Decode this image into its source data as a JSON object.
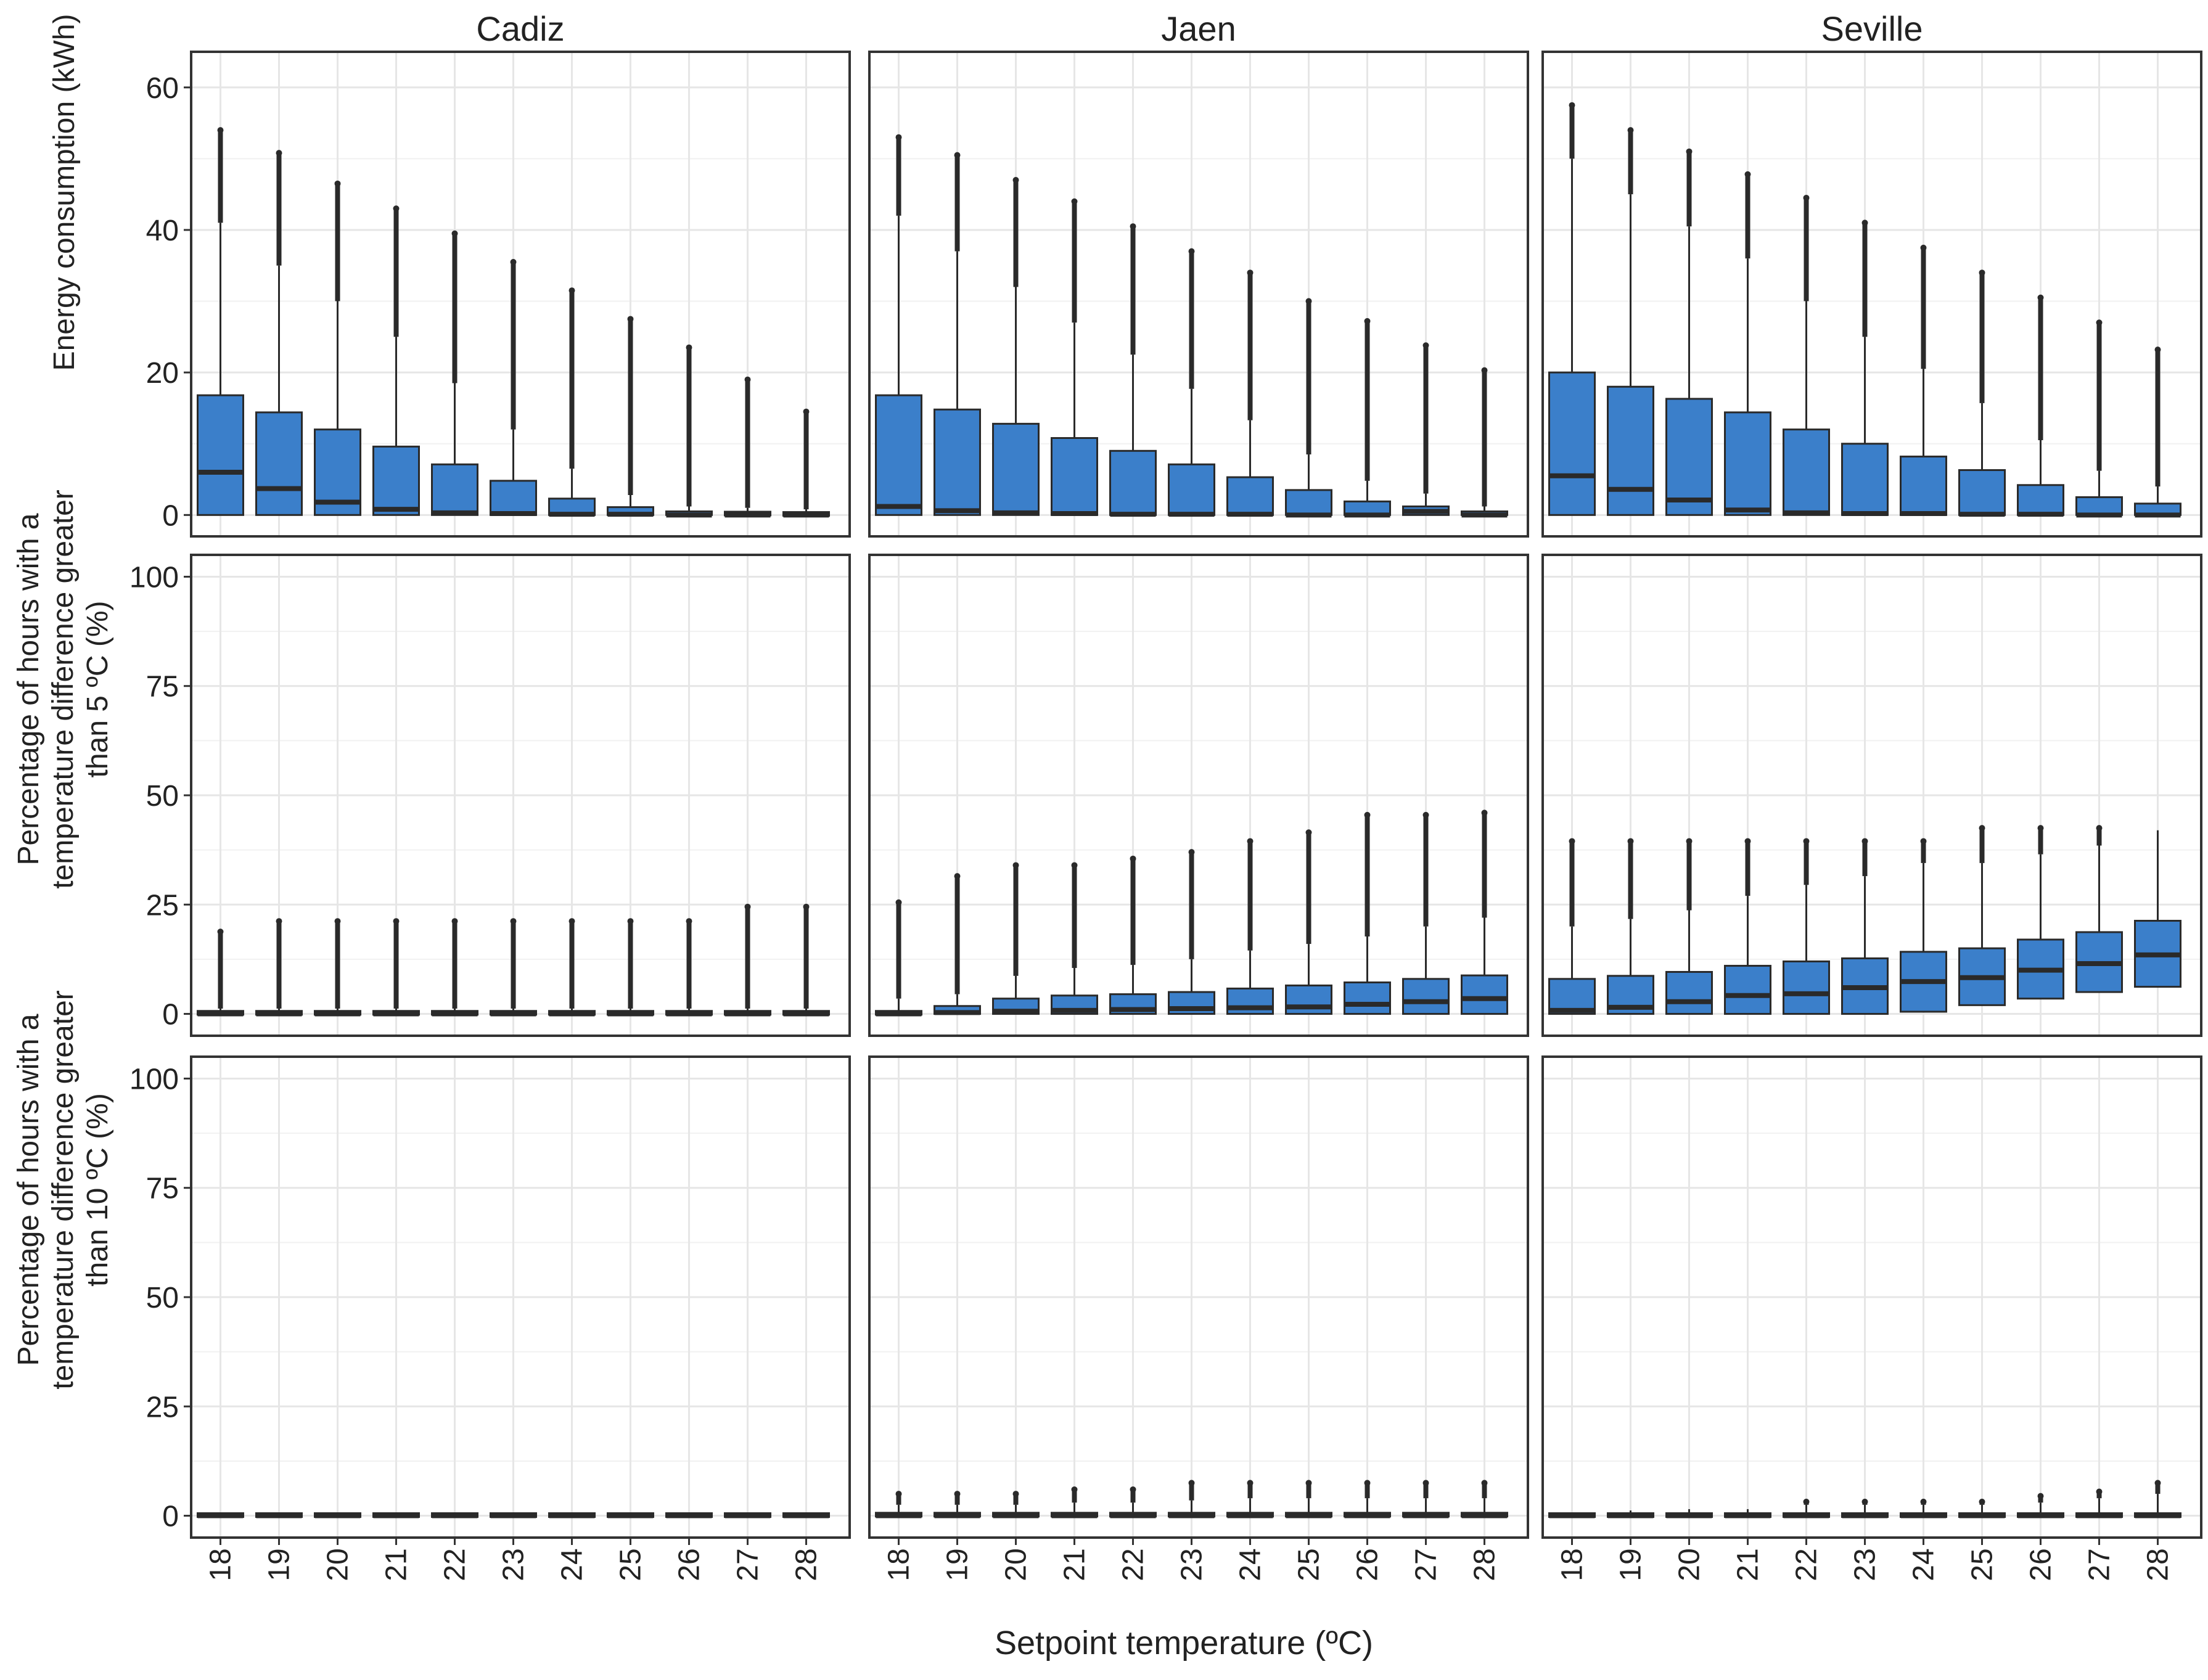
{
  "x_title": "Setpoint temperature (ºC)",
  "categories": [
    "18",
    "19",
    "20",
    "21",
    "22",
    "23",
    "24",
    "25",
    "26",
    "27",
    "28"
  ],
  "columns": [
    "Cadiz",
    "Jaen",
    "Seville"
  ],
  "colors": {
    "box_fill": "#3b7fca",
    "box_stroke": "#2a2a2a",
    "grid": "#e6e6e6",
    "panel_border": "#333333"
  },
  "chart_data": [
    {
      "type": "boxplot",
      "row_label": "Energy consumption (kWh)",
      "ylabel_lines": [
        "Energy consumption (kWh)"
      ],
      "ylim": [
        -3,
        65
      ],
      "yticks": [
        0,
        20,
        40,
        60
      ],
      "yticklabels": [
        "0",
        "20",
        "40",
        "60"
      ],
      "panels": {
        "Cadiz": [
          {
            "q1": 0,
            "med": 6,
            "q3": 16.8,
            "whi": 41,
            "out": [
              54
            ]
          },
          {
            "q1": 0,
            "med": 3.7,
            "q3": 14.4,
            "whi": 35,
            "out": [
              50.8
            ]
          },
          {
            "q1": 0,
            "med": 1.8,
            "q3": 12,
            "whi": 30,
            "out": [
              46.5
            ]
          },
          {
            "q1": 0,
            "med": 0.8,
            "q3": 9.6,
            "whi": 25,
            "out": [
              43
            ]
          },
          {
            "q1": 0,
            "med": 0.3,
            "q3": 7.1,
            "whi": 18.5,
            "out": [
              39.5
            ]
          },
          {
            "q1": 0,
            "med": 0.2,
            "q3": 4.8,
            "whi": 12,
            "out": [
              35.5
            ]
          },
          {
            "q1": 0,
            "med": 0.1,
            "q3": 2.3,
            "whi": 6.5,
            "out": [
              31.5
            ]
          },
          {
            "q1": 0,
            "med": 0.1,
            "q3": 1.1,
            "whi": 2.8,
            "out": [
              27.5
            ]
          },
          {
            "q1": 0,
            "med": 0,
            "q3": 0.5,
            "whi": 1.2,
            "out": [
              23.5
            ]
          },
          {
            "q1": 0,
            "med": 0,
            "q3": 0.4,
            "whi": 1,
            "out": [
              19
            ]
          },
          {
            "q1": 0,
            "med": 0,
            "q3": 0.3,
            "whi": 0.8,
            "out": [
              14.5
            ]
          }
        ],
        "Jaen": [
          {
            "q1": 0,
            "med": 1.2,
            "q3": 16.8,
            "whi": 42,
            "out": [
              53
            ]
          },
          {
            "q1": 0,
            "med": 0.6,
            "q3": 14.8,
            "whi": 37,
            "out": [
              50.5
            ]
          },
          {
            "q1": 0,
            "med": 0.3,
            "q3": 12.8,
            "whi": 32,
            "out": [
              47
            ]
          },
          {
            "q1": 0,
            "med": 0.2,
            "q3": 10.8,
            "whi": 27,
            "out": [
              44
            ]
          },
          {
            "q1": 0,
            "med": 0.1,
            "q3": 9,
            "whi": 22.5,
            "out": [
              40.5
            ]
          },
          {
            "q1": 0,
            "med": 0.1,
            "q3": 7.1,
            "whi": 17.7,
            "out": [
              37
            ]
          },
          {
            "q1": 0,
            "med": 0.1,
            "q3": 5.3,
            "whi": 13.3,
            "out": [
              34
            ]
          },
          {
            "q1": 0,
            "med": 0,
            "q3": 3.5,
            "whi": 8.5,
            "out": [
              30
            ]
          },
          {
            "q1": 0,
            "med": 0,
            "q3": 1.9,
            "whi": 4.8,
            "out": [
              27.2
            ]
          },
          {
            "q1": 0,
            "med": 0.5,
            "q3": 1.2,
            "whi": 3,
            "out": [
              23.8
            ]
          },
          {
            "q1": 0,
            "med": 0,
            "q3": 0.5,
            "whi": 1.2,
            "out": [
              20.3
            ]
          }
        ],
        "Seville": [
          {
            "q1": 0,
            "med": 5.5,
            "q3": 20,
            "whi": 50,
            "out": [
              57.5
            ]
          },
          {
            "q1": 0,
            "med": 3.6,
            "q3": 18,
            "whi": 45,
            "out": [
              54
            ]
          },
          {
            "q1": 0,
            "med": 2.1,
            "q3": 16.3,
            "whi": 40.5,
            "out": [
              51
            ]
          },
          {
            "q1": 0,
            "med": 0.7,
            "q3": 14.4,
            "whi": 36,
            "out": [
              47.8
            ]
          },
          {
            "q1": 0,
            "med": 0.3,
            "q3": 12,
            "whi": 30,
            "out": [
              44.5
            ]
          },
          {
            "q1": 0,
            "med": 0.2,
            "q3": 10,
            "whi": 25,
            "out": [
              41
            ]
          },
          {
            "q1": 0,
            "med": 0.2,
            "q3": 8.2,
            "whi": 20.5,
            "out": [
              37.5
            ]
          },
          {
            "q1": 0,
            "med": 0.1,
            "q3": 6.3,
            "whi": 15.7,
            "out": [
              34
            ]
          },
          {
            "q1": 0,
            "med": 0.1,
            "q3": 4.2,
            "whi": 10.5,
            "out": [
              30.5
            ]
          },
          {
            "q1": 0,
            "med": 0,
            "q3": 2.5,
            "whi": 6.2,
            "out": [
              27
            ]
          },
          {
            "q1": 0,
            "med": 0,
            "q3": 1.6,
            "whi": 4,
            "out": [
              23.2
            ]
          }
        ]
      }
    },
    {
      "type": "boxplot",
      "row_label": "Percentage of hours with a temperature difference greater than 5 ºC (%)",
      "ylabel_lines": [
        "Percentage of hours with a",
        "temperature difference greater",
        "than 5 ºC (%)"
      ],
      "ylim": [
        -5,
        105
      ],
      "yticks": [
        0,
        25,
        50,
        75,
        100
      ],
      "yticklabels": [
        "0",
        "25",
        "50",
        "75",
        "100"
      ],
      "panels": {
        "Cadiz": [
          {
            "q1": 0,
            "med": 0,
            "q3": 0.5,
            "whi": 1.2,
            "out": [
              18.8
            ]
          },
          {
            "q1": 0,
            "med": 0,
            "q3": 0.5,
            "whi": 1.2,
            "out": [
              21.2
            ]
          },
          {
            "q1": 0,
            "med": 0,
            "q3": 0.5,
            "whi": 1.2,
            "out": [
              21.2
            ]
          },
          {
            "q1": 0,
            "med": 0,
            "q3": 0.5,
            "whi": 1.2,
            "out": [
              21.2
            ]
          },
          {
            "q1": 0,
            "med": 0,
            "q3": 0.5,
            "whi": 1.2,
            "out": [
              21.2
            ]
          },
          {
            "q1": 0,
            "med": 0,
            "q3": 0.5,
            "whi": 1.2,
            "out": [
              21.2
            ]
          },
          {
            "q1": 0,
            "med": 0,
            "q3": 0.5,
            "whi": 1.2,
            "out": [
              21.2
            ]
          },
          {
            "q1": 0,
            "med": 0,
            "q3": 0.5,
            "whi": 1.2,
            "out": [
              21.2
            ]
          },
          {
            "q1": 0,
            "med": 0,
            "q3": 0.5,
            "whi": 1.2,
            "out": [
              21.2
            ]
          },
          {
            "q1": 0,
            "med": 0,
            "q3": 0.5,
            "whi": 1.2,
            "out": [
              24.5
            ]
          },
          {
            "q1": 0,
            "med": 0,
            "q3": 0.5,
            "whi": 1.2,
            "out": [
              24.5
            ]
          }
        ],
        "Jaen": [
          {
            "q1": 0,
            "med": 0,
            "q3": 0.5,
            "whi": 3.5,
            "out": [
              25.5
            ]
          },
          {
            "q1": 0,
            "med": 0.3,
            "q3": 1.8,
            "whi": 4.5,
            "out": [
              31.5
            ]
          },
          {
            "q1": 0,
            "med": 0.6,
            "q3": 3.5,
            "whi": 8.7,
            "out": [
              34
            ]
          },
          {
            "q1": 0,
            "med": 0.8,
            "q3": 4.2,
            "whi": 10.5,
            "out": [
              34
            ]
          },
          {
            "q1": 0,
            "med": 1,
            "q3": 4.5,
            "whi": 11.2,
            "out": [
              35.5
            ]
          },
          {
            "q1": 0,
            "med": 1.2,
            "q3": 5,
            "whi": 12.5,
            "out": [
              37
            ]
          },
          {
            "q1": 0,
            "med": 1.4,
            "q3": 5.8,
            "whi": 14.5,
            "out": [
              39.5
            ]
          },
          {
            "q1": 0,
            "med": 1.6,
            "q3": 6.5,
            "whi": 16,
            "out": [
              41.5
            ]
          },
          {
            "q1": 0,
            "med": 2.2,
            "q3": 7.2,
            "whi": 17.7,
            "out": [
              45.5
            ]
          },
          {
            "q1": 0,
            "med": 2.8,
            "q3": 8,
            "whi": 20,
            "out": [
              45.5
            ]
          },
          {
            "q1": 0,
            "med": 3.5,
            "q3": 8.8,
            "whi": 22,
            "out": [
              46
            ]
          }
        ],
        "Seville": [
          {
            "q1": 0,
            "med": 0.8,
            "q3": 8,
            "whi": 20,
            "out": [
              39.5
            ]
          },
          {
            "q1": 0,
            "med": 1.5,
            "q3": 8.7,
            "whi": 21.7,
            "out": [
              39.5
            ]
          },
          {
            "q1": 0,
            "med": 2.8,
            "q3": 9.6,
            "whi": 23.7,
            "out": [
              39.5
            ]
          },
          {
            "q1": 0,
            "med": 4.2,
            "q3": 11,
            "whi": 27,
            "out": [
              39.5
            ]
          },
          {
            "q1": 0,
            "med": 4.6,
            "q3": 12,
            "whi": 29.5,
            "out": [
              39.5
            ]
          },
          {
            "q1": 0,
            "med": 6,
            "q3": 12.7,
            "whi": 31.5,
            "out": [
              39.5
            ]
          },
          {
            "q1": 0.5,
            "med": 7.4,
            "q3": 14.2,
            "whi": 34.5,
            "out": [
              39.5
            ]
          },
          {
            "q1": 2,
            "med": 8.3,
            "q3": 15,
            "whi": 34.5,
            "out": [
              42.5
            ]
          },
          {
            "q1": 3.5,
            "med": 10,
            "q3": 17,
            "whi": 36.5,
            "out": [
              42.5
            ]
          },
          {
            "q1": 5,
            "med": 11.5,
            "q3": 18.7,
            "whi": 38.5,
            "out": [
              42.5
            ]
          },
          {
            "q1": 6.2,
            "med": 13.5,
            "q3": 21.3,
            "whi": 42,
            "out": []
          }
        ]
      }
    },
    {
      "type": "boxplot",
      "row_label": "Percentage of hours with a temperature difference greater than 10 ºC (%)",
      "ylabel_lines": [
        "Percentage of hours with a",
        "temperature difference greater",
        "than 10 ºC (%)"
      ],
      "ylim": [
        -5,
        105
      ],
      "yticks": [
        0,
        25,
        50,
        75,
        100
      ],
      "yticklabels": [
        "0",
        "25",
        "50",
        "75",
        "100"
      ],
      "panels": {
        "Cadiz": [
          {
            "q1": 0,
            "med": 0,
            "q3": 0.3,
            "whi": 0.6,
            "out": []
          },
          {
            "q1": 0,
            "med": 0,
            "q3": 0.3,
            "whi": 0.6,
            "out": []
          },
          {
            "q1": 0,
            "med": 0,
            "q3": 0.3,
            "whi": 0.6,
            "out": []
          },
          {
            "q1": 0,
            "med": 0,
            "q3": 0.3,
            "whi": 0.6,
            "out": []
          },
          {
            "q1": 0,
            "med": 0,
            "q3": 0.3,
            "whi": 0.6,
            "out": []
          },
          {
            "q1": 0,
            "med": 0,
            "q3": 0.3,
            "whi": 0.6,
            "out": []
          },
          {
            "q1": 0,
            "med": 0,
            "q3": 0.3,
            "whi": 0.6,
            "out": []
          },
          {
            "q1": 0,
            "med": 0,
            "q3": 0.3,
            "whi": 0.6,
            "out": []
          },
          {
            "q1": 0,
            "med": 0,
            "q3": 0.3,
            "whi": 0.6,
            "out": []
          },
          {
            "q1": 0,
            "med": 0,
            "q3": 0.3,
            "whi": 0.6,
            "out": []
          },
          {
            "q1": 0,
            "med": 0,
            "q3": 0.3,
            "whi": 0.6,
            "out": []
          }
        ],
        "Jaen": [
          {
            "q1": 0,
            "med": 0,
            "q3": 0.5,
            "whi": 2.5,
            "out": [
              5
            ]
          },
          {
            "q1": 0,
            "med": 0,
            "q3": 0.5,
            "whi": 2.5,
            "out": [
              5
            ]
          },
          {
            "q1": 0,
            "med": 0,
            "q3": 0.5,
            "whi": 2.5,
            "out": [
              5
            ]
          },
          {
            "q1": 0,
            "med": 0,
            "q3": 0.5,
            "whi": 3,
            "out": [
              6
            ]
          },
          {
            "q1": 0,
            "med": 0,
            "q3": 0.5,
            "whi": 3,
            "out": [
              6
            ]
          },
          {
            "q1": 0,
            "med": 0,
            "q3": 0.5,
            "whi": 3.5,
            "out": [
              7.5
            ]
          },
          {
            "q1": 0,
            "med": 0,
            "q3": 0.5,
            "whi": 4,
            "out": [
              7.5
            ]
          },
          {
            "q1": 0,
            "med": 0,
            "q3": 0.5,
            "whi": 4,
            "out": [
              7.5
            ]
          },
          {
            "q1": 0,
            "med": 0,
            "q3": 0.5,
            "whi": 4,
            "out": [
              7.5
            ]
          },
          {
            "q1": 0,
            "med": 0,
            "q3": 0.5,
            "whi": 4,
            "out": [
              7.5
            ]
          },
          {
            "q1": 0,
            "med": 0,
            "q3": 0.5,
            "whi": 4,
            "out": [
              7.5
            ]
          }
        ],
        "Seville": [
          {
            "q1": 0,
            "med": 0,
            "q3": 0.3,
            "whi": 0.6,
            "out": []
          },
          {
            "q1": 0,
            "med": 0,
            "q3": 0.3,
            "whi": 1.2,
            "out": []
          },
          {
            "q1": 0,
            "med": 0,
            "q3": 0.3,
            "whi": 1.5,
            "out": []
          },
          {
            "q1": 0,
            "med": 0,
            "q3": 0.3,
            "whi": 1.5,
            "out": []
          },
          {
            "q1": 0,
            "med": 0,
            "q3": 0.3,
            "whi": 2.5,
            "out": [
              3.2
            ]
          },
          {
            "q1": 0,
            "med": 0,
            "q3": 0.3,
            "whi": 2.5,
            "out": [
              3.2
            ]
          },
          {
            "q1": 0,
            "med": 0,
            "q3": 0.3,
            "whi": 2.5,
            "out": [
              3.2
            ]
          },
          {
            "q1": 0,
            "med": 0,
            "q3": 0.3,
            "whi": 2.5,
            "out": [
              3.2
            ]
          },
          {
            "q1": 0,
            "med": 0,
            "q3": 0.3,
            "whi": 3,
            "out": [
              4.5
            ]
          },
          {
            "q1": 0,
            "med": 0,
            "q3": 0.3,
            "whi": 4,
            "out": [
              5.5
            ]
          },
          {
            "q1": 0,
            "med": 0,
            "q3": 0.3,
            "whi": 5,
            "out": [
              7.5
            ]
          }
        ]
      }
    }
  ]
}
